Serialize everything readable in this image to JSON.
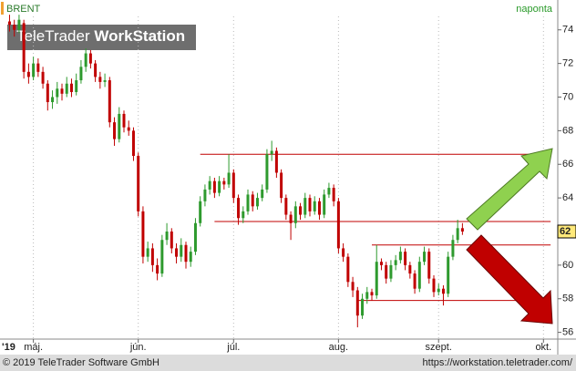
{
  "chart_data": {
    "type": "candlestick",
    "symbol": "BRENT",
    "period": "naponta",
    "watermark_brand": "TeleTrader",
    "watermark_product": "WorkStation",
    "year_label": "'19",
    "up_color": "#2e9a2e",
    "down_color": "#c00000",
    "level_color": "#c00000",
    "grid": true,
    "xlim": [
      -2,
      115
    ],
    "ylim": [
      55.6,
      74.8
    ],
    "yticks": [
      56,
      58,
      60,
      62,
      64,
      66,
      68,
      70,
      72,
      74
    ],
    "xticks": [
      {
        "value": 5,
        "label": "máj."
      },
      {
        "value": 27,
        "label": "jún."
      },
      {
        "value": 47,
        "label": "júl."
      },
      {
        "value": 69,
        "label": "aug."
      },
      {
        "value": 90,
        "label": "szept."
      },
      {
        "value": 112,
        "label": "okt."
      }
    ],
    "last_price": {
      "value": 62,
      "label": "62"
    },
    "levels": [
      {
        "value": 66.6,
        "from": 40,
        "to": 113.5
      },
      {
        "value": 62.6,
        "from": 43,
        "to": 113.5
      },
      {
        "value": 61.2,
        "from": 76,
        "to": 113.5
      },
      {
        "value": 57.9,
        "from": 73,
        "to": 113.5
      }
    ],
    "candles": [
      [
        74.5,
        74.9,
        73.9,
        74.3
      ],
      [
        74.3,
        74.6,
        73.6,
        74.0
      ],
      [
        74.0,
        74.9,
        73.8,
        74.6
      ],
      [
        74.4,
        74.6,
        71.1,
        71.5
      ],
      [
        71.5,
        72.0,
        70.8,
        71.2
      ],
      [
        71.2,
        72.4,
        71.0,
        72.0
      ],
      [
        72.0,
        72.3,
        71.2,
        71.5
      ],
      [
        71.5,
        71.8,
        70.5,
        70.8
      ],
      [
        70.8,
        71.0,
        69.2,
        69.7
      ],
      [
        69.7,
        70.4,
        69.3,
        70.0
      ],
      [
        70.0,
        70.9,
        69.6,
        70.5
      ],
      [
        70.5,
        70.8,
        69.8,
        70.2
      ],
      [
        70.2,
        71.2,
        70.0,
        70.8
      ],
      [
        70.8,
        71.1,
        70.0,
        70.3
      ],
      [
        70.3,
        71.4,
        70.1,
        71.0
      ],
      [
        71.0,
        72.2,
        70.8,
        71.8
      ],
      [
        71.8,
        72.9,
        71.5,
        72.6
      ],
      [
        72.6,
        72.8,
        71.7,
        72.0
      ],
      [
        72.0,
        72.2,
        70.9,
        71.2
      ],
      [
        71.2,
        71.5,
        70.5,
        70.9
      ],
      [
        70.9,
        71.4,
        70.6,
        71.0
      ],
      [
        71.0,
        71.2,
        68.2,
        68.5
      ],
      [
        68.5,
        68.8,
        67.1,
        67.5
      ],
      [
        67.5,
        69.4,
        67.3,
        69.0
      ],
      [
        69.0,
        69.2,
        67.9,
        68.2
      ],
      [
        68.2,
        68.6,
        67.7,
        68.0
      ],
      [
        68.0,
        68.2,
        66.2,
        66.5
      ],
      [
        66.5,
        66.7,
        62.9,
        63.2
      ],
      [
        63.2,
        63.5,
        60.1,
        60.5
      ],
      [
        60.5,
        61.4,
        60.2,
        61.0
      ],
      [
        61.0,
        61.3,
        59.6,
        60.0
      ],
      [
        60.0,
        60.4,
        59.1,
        59.5
      ],
      [
        59.5,
        61.8,
        59.3,
        61.5
      ],
      [
        61.5,
        62.5,
        61.2,
        62.0
      ],
      [
        62.0,
        62.2,
        60.7,
        61.0
      ],
      [
        61.0,
        61.3,
        60.1,
        60.5
      ],
      [
        60.5,
        61.6,
        60.2,
        61.2
      ],
      [
        61.2,
        61.4,
        59.8,
        60.2
      ],
      [
        60.2,
        61.1,
        59.9,
        60.8
      ],
      [
        60.8,
        62.8,
        60.6,
        62.5
      ],
      [
        62.5,
        64.1,
        62.3,
        63.8
      ],
      [
        63.8,
        64.8,
        63.5,
        64.5
      ],
      [
        64.5,
        65.3,
        64.2,
        65.0
      ],
      [
        65.0,
        65.2,
        64.0,
        64.3
      ],
      [
        64.3,
        65.3,
        64.1,
        65.0
      ],
      [
        65.0,
        65.2,
        64.5,
        64.8
      ],
      [
        64.8,
        66.6,
        64.6,
        65.5
      ],
      [
        65.5,
        65.7,
        63.7,
        64.0
      ],
      [
        64.0,
        64.2,
        62.4,
        62.8
      ],
      [
        62.8,
        63.5,
        62.5,
        63.2
      ],
      [
        63.2,
        64.5,
        63.0,
        64.2
      ],
      [
        64.2,
        64.4,
        63.2,
        63.5
      ],
      [
        63.5,
        64.3,
        63.3,
        64.0
      ],
      [
        64.0,
        64.8,
        63.8,
        64.5
      ],
      [
        64.5,
        66.9,
        64.3,
        66.6
      ],
      [
        66.6,
        67.4,
        66.2,
        66.8
      ],
      [
        66.8,
        67.0,
        65.2,
        65.5
      ],
      [
        65.5,
        65.7,
        63.7,
        64.0
      ],
      [
        64.0,
        64.2,
        62.7,
        63.0
      ],
      [
        63.0,
        63.2,
        61.5,
        62.5
      ],
      [
        62.5,
        63.8,
        62.2,
        63.5
      ],
      [
        63.5,
        63.7,
        62.7,
        63.0
      ],
      [
        63.0,
        64.3,
        62.8,
        64.0
      ],
      [
        64.0,
        64.2,
        62.9,
        63.2
      ],
      [
        63.2,
        64.1,
        63.0,
        63.8
      ],
      [
        63.8,
        64.0,
        62.7,
        63.0
      ],
      [
        63.0,
        64.5,
        62.8,
        64.2
      ],
      [
        64.2,
        64.9,
        64.0,
        64.6
      ],
      [
        64.6,
        64.8,
        63.5,
        63.8
      ],
      [
        63.8,
        64.0,
        60.7,
        61.0
      ],
      [
        61.0,
        61.3,
        60.2,
        60.5
      ],
      [
        60.5,
        60.7,
        58.7,
        59.0
      ],
      [
        59.0,
        59.3,
        58.1,
        58.5
      ],
      [
        58.5,
        58.7,
        56.3,
        57.0
      ],
      [
        57.0,
        58.3,
        56.8,
        58.0
      ],
      [
        58.0,
        58.7,
        57.7,
        58.4
      ],
      [
        58.4,
        58.6,
        57.9,
        58.2
      ],
      [
        58.2,
        61.2,
        58.0,
        60.2
      ],
      [
        60.2,
        60.4,
        59.7,
        60.0
      ],
      [
        60.0,
        60.2,
        58.9,
        59.2
      ],
      [
        59.2,
        60.3,
        59.0,
        60.0
      ],
      [
        60.0,
        60.6,
        59.7,
        60.3
      ],
      [
        60.3,
        61.1,
        60.1,
        60.8
      ],
      [
        60.8,
        61.0,
        59.7,
        60.0
      ],
      [
        60.0,
        60.2,
        59.2,
        59.5
      ],
      [
        59.5,
        59.7,
        58.3,
        58.6
      ],
      [
        58.6,
        60.5,
        58.4,
        60.2
      ],
      [
        60.2,
        61.1,
        60.0,
        60.8
      ],
      [
        60.8,
        61.0,
        58.9,
        59.2
      ],
      [
        59.2,
        59.4,
        58.1,
        58.4
      ],
      [
        58.4,
        58.9,
        58.2,
        58.6
      ],
      [
        58.6,
        58.8,
        57.6,
        58.3
      ],
      [
        58.3,
        60.8,
        58.1,
        60.5
      ],
      [
        60.5,
        61.8,
        60.3,
        61.5
      ],
      [
        61.5,
        62.7,
        61.3,
        62.2
      ],
      [
        62.2,
        62.5,
        61.8,
        62.0
      ]
    ]
  },
  "footer": {
    "copyright": "© 2019 TeleTrader Software GmbH",
    "url": "https://workstation.teletrader.com/"
  }
}
